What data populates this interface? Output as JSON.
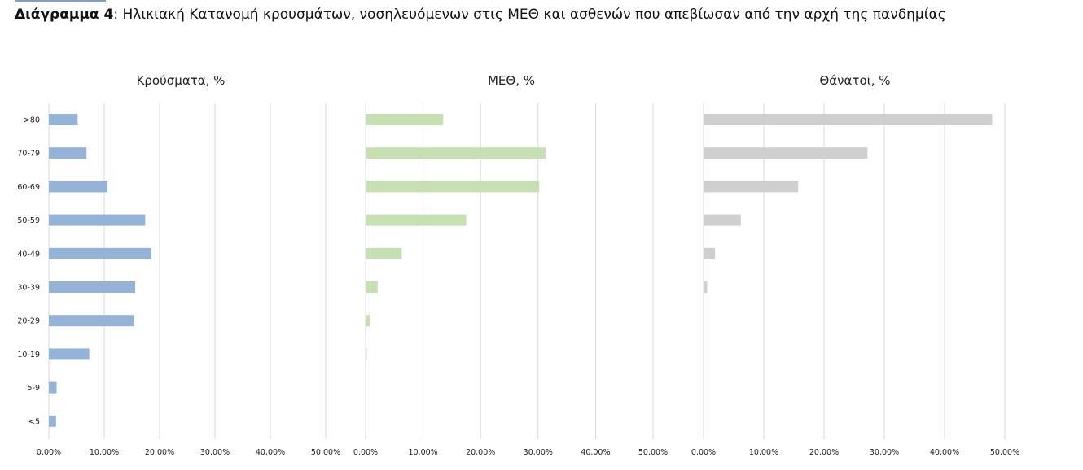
{
  "caption": {
    "bold": "Διάγραμμα 4",
    "text": ": Ηλικιακή Κατανομή κρουσμάτων, νοσηλευόμενων στις ΜΕΘ και ασθενών που απεβίωσαν από την αρχή της πανδημίας"
  },
  "chart_data": [
    {
      "type": "bar",
      "orientation": "horizontal",
      "title": "Κρούσματα, %",
      "categories": [
        ">80",
        "70-79",
        "60-69",
        "50-59",
        "40-49",
        "30-39",
        "20-29",
        "10-19",
        "5-9",
        "<5"
      ],
      "values": [
        5.2,
        6.8,
        10.6,
        17.4,
        18.5,
        15.6,
        15.4,
        7.3,
        1.4,
        1.3
      ],
      "xlim": [
        0,
        50
      ],
      "xticks": [
        "0,00%",
        "10,00%",
        "20,00%",
        "30,00%",
        "40,00%",
        "50,00%"
      ],
      "color": "#95b3d7",
      "grid": true
    },
    {
      "type": "bar",
      "orientation": "horizontal",
      "title": "ΜΕΘ, %",
      "categories": [
        ">80",
        "70-79",
        "60-69",
        "50-59",
        "40-49",
        "30-39",
        "20-29",
        "10-19",
        "5-9",
        "<5"
      ],
      "values": [
        13.5,
        31.3,
        30.2,
        17.5,
        6.3,
        2.1,
        0.7,
        0.2,
        0,
        0
      ],
      "xlim": [
        0,
        50
      ],
      "xticks": [
        "0,00%",
        "10,00%",
        "20,00%",
        "30,00%",
        "40,00%",
        "50,00%"
      ],
      "color": "#c6e0b4",
      "grid": true
    },
    {
      "type": "bar",
      "orientation": "horizontal",
      "title": "Θάνατοι, %",
      "categories": [
        ">80",
        "70-79",
        "60-69",
        "50-59",
        "40-49",
        "30-39",
        "20-29",
        "10-19",
        "5-9",
        "<5"
      ],
      "values": [
        47.9,
        27.2,
        15.7,
        6.2,
        1.9,
        0.6,
        0,
        0,
        0,
        0
      ],
      "xlim": [
        0,
        50
      ],
      "xticks": [
        "0,00%",
        "10,00%",
        "20,00%",
        "30,00%",
        "40,00%",
        "50,00%"
      ],
      "color": "#d0cece",
      "grid": true
    }
  ]
}
